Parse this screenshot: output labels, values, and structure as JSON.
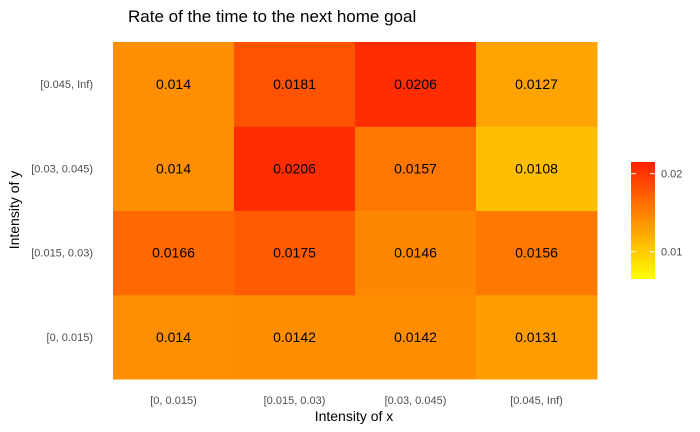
{
  "chart_data": {
    "type": "heatmap",
    "title": "Rate of the time to the next home goal",
    "xlabel": "Intensity of x",
    "ylabel": "Intensity of y",
    "x_categories": [
      "[0, 0.015)",
      "[0.015, 0.03)",
      "[0.03, 0.045)",
      "[0.045, Inf)"
    ],
    "y_categories": [
      "[0, 0.015)",
      "[0.015, 0.03)",
      "[0.03, 0.045)",
      "[0.045, Inf)"
    ],
    "values": [
      [
        "0.014",
        "0.0142",
        "0.0142",
        "0.0131"
      ],
      [
        "0.0166",
        "0.0175",
        "0.0146",
        "0.0156"
      ],
      [
        "0.014",
        "0.0206",
        "0.0157",
        "0.0108"
      ],
      [
        "0.014",
        "0.0181",
        "0.0206",
        "0.0127"
      ]
    ],
    "color_scale": {
      "low_color": "#ffff00",
      "high_color": "#ff2000",
      "min": 0.0065,
      "max": 0.0215,
      "ticks": [
        0.01,
        0.02
      ],
      "tick_labels": [
        "0.01",
        "0.02"
      ]
    },
    "legend_position": "right",
    "grid": false
  }
}
